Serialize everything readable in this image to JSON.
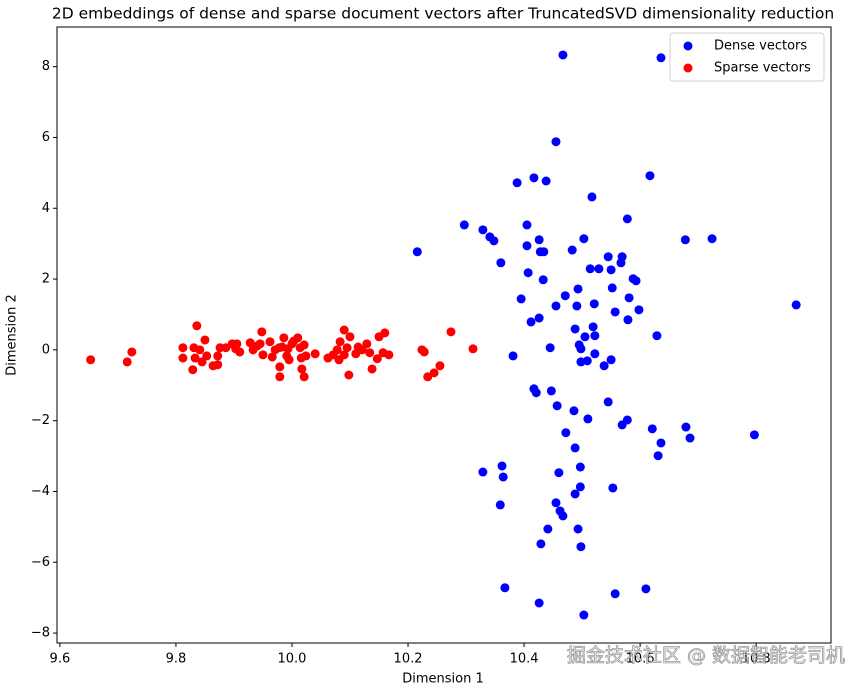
{
  "chart_data": {
    "type": "scatter",
    "title": "2D embeddings of dense and sparse document vectors after TruncatedSVD dimensionality reduction",
    "x_label": "Dimension 1",
    "y_label": "Dimension 2",
    "xlim": [
      9.595,
      10.929
    ],
    "ylim": [
      -8.28,
      9.12
    ],
    "xticks": [
      9.6,
      9.8,
      {
        "value": 10,
        "label": "10.0"
      },
      10.2,
      10.4,
      10.6,
      10.8
    ],
    "yticks": [
      {
        "value": -8,
        "label": "−8"
      },
      {
        "value": -6,
        "label": "−6"
      },
      {
        "value": -4,
        "label": "−4"
      },
      {
        "value": -2,
        "label": "−2"
      },
      0,
      2,
      4,
      6,
      8
    ],
    "legend": "upper right",
    "grid": false,
    "watermark": "掘金技术社区 @ 数据智能老司机",
    "series": [
      {
        "name": "Dense vectors",
        "color": "#0000ff",
        "x": [
          10.467,
          10.636,
          10.455,
          10.417,
          10.438,
          10.388,
          10.617,
          10.517,
          10.578,
          10.297,
          10.329,
          10.341,
          10.348,
          10.405,
          10.426,
          10.503,
          10.678,
          10.724,
          10.216,
          10.405,
          10.428,
          10.434,
          10.483,
          10.545,
          10.569,
          10.36,
          10.567,
          10.514,
          10.529,
          10.55,
          10.407,
          10.588,
          10.593,
          10.433,
          10.493,
          10.552,
          10.471,
          10.395,
          10.581,
          10.869,
          10.521,
          10.455,
          10.491,
          10.557,
          10.598,
          10.426,
          10.412,
          10.579,
          10.488,
          10.519,
          10.629,
          10.505,
          10.522,
          10.495,
          10.445,
          10.498,
          10.522,
          10.381,
          10.509,
          10.498,
          10.55,
          10.538,
          10.417,
          10.421,
          10.447,
          10.545,
          10.457,
          10.486,
          10.51,
          10.578,
          10.569,
          10.621,
          10.679,
          10.686,
          10.636,
          10.797,
          10.472,
          10.488,
          10.631,
          10.362,
          10.497,
          10.329,
          10.46,
          10.364,
          10.497,
          10.553,
          10.488,
          10.359,
          10.455,
          10.462,
          10.467,
          10.441,
          10.493,
          10.429,
          10.498,
          10.367,
          10.61,
          10.557,
          10.426,
          10.503
        ],
        "values": [
          8.33,
          8.25,
          5.88,
          4.86,
          4.77,
          4.72,
          4.92,
          4.32,
          3.7,
          3.53,
          3.39,
          3.19,
          3.08,
          3.53,
          3.11,
          3.14,
          3.11,
          3.14,
          2.77,
          2.94,
          2.77,
          2.77,
          2.82,
          2.63,
          2.63,
          2.46,
          2.46,
          2.29,
          2.29,
          2.26,
          2.18,
          2.01,
          1.95,
          1.98,
          1.72,
          1.75,
          1.53,
          1.44,
          1.47,
          1.27,
          1.3,
          1.24,
          1.24,
          1.07,
          1.13,
          0.9,
          0.79,
          0.85,
          0.59,
          0.65,
          0.4,
          0.37,
          0.4,
          0.14,
          0.06,
          0.03,
          -0.11,
          -0.17,
          -0.31,
          -0.34,
          -0.28,
          -0.45,
          -1.1,
          -1.21,
          -1.16,
          -1.47,
          -1.58,
          -1.72,
          -1.95,
          -1.98,
          -2.12,
          -2.23,
          -2.18,
          -2.49,
          -2.63,
          -2.4,
          -2.34,
          -2.77,
          -2.99,
          -3.28,
          -3.31,
          -3.45,
          -3.47,
          -3.59,
          -3.87,
          -3.9,
          -4.07,
          -4.38,
          -4.32,
          -4.55,
          -4.69,
          -5.06,
          -5.06,
          -5.48,
          -5.56,
          -6.72,
          -6.75,
          -6.89,
          -7.15,
          -7.49
        ]
      },
      {
        "name": "Sparse vectors",
        "color": "#ff0000",
        "x": [
          9.653,
          9.716,
          9.724,
          9.812,
          9.812,
          9.831,
          9.836,
          9.833,
          9.829,
          9.841,
          9.845,
          9.85,
          9.853,
          9.864,
          9.872,
          9.872,
          9.876,
          9.886,
          9.897,
          9.903,
          9.905,
          9.91,
          9.928,
          9.933,
          9.94,
          9.945,
          9.948,
          9.95,
          9.962,
          9.966,
          9.971,
          9.978,
          9.979,
          9.983,
          9.986,
          9.991,
          9.993,
          9.979,
          9.995,
          10.0,
          10.003,
          10.01,
          10.014,
          10.016,
          10.017,
          10.021,
          10.021,
          10.024,
          10.04,
          10.062,
          10.071,
          10.078,
          10.081,
          10.083,
          10.09,
          10.09,
          10.098,
          10.1,
          10.095,
          10.11,
          10.114,
          10.121,
          10.129,
          10.134,
          10.138,
          10.147,
          10.15,
          10.157,
          10.16,
          10.167,
          10.224,
          10.228,
          10.234,
          10.245,
          10.255,
          10.274,
          10.312
        ],
        "values": [
          -0.28,
          -0.34,
          -0.06,
          0.06,
          -0.23,
          0.06,
          0.68,
          -0.23,
          -0.56,
          0.0,
          -0.34,
          0.28,
          -0.17,
          -0.45,
          -0.17,
          -0.42,
          0.06,
          0.06,
          0.17,
          0.03,
          0.17,
          -0.06,
          0.2,
          0.0,
          0.11,
          0.17,
          0.51,
          -0.14,
          0.23,
          -0.2,
          0.0,
          0.06,
          -0.48,
          0.08,
          0.34,
          -0.17,
          0.03,
          -0.76,
          -0.28,
          0.17,
          0.25,
          0.34,
          0.06,
          -0.23,
          -0.54,
          -0.76,
          0.14,
          -0.17,
          -0.11,
          -0.23,
          -0.14,
          0.0,
          -0.28,
          0.23,
          0.56,
          -0.14,
          -0.71,
          0.37,
          0.06,
          -0.11,
          0.08,
          0.0,
          0.17,
          -0.08,
          -0.54,
          -0.25,
          0.37,
          -0.08,
          0.48,
          -0.14,
          0.0,
          -0.06,
          -0.76,
          -0.65,
          -0.45,
          0.51,
          0.03
        ]
      }
    ]
  }
}
